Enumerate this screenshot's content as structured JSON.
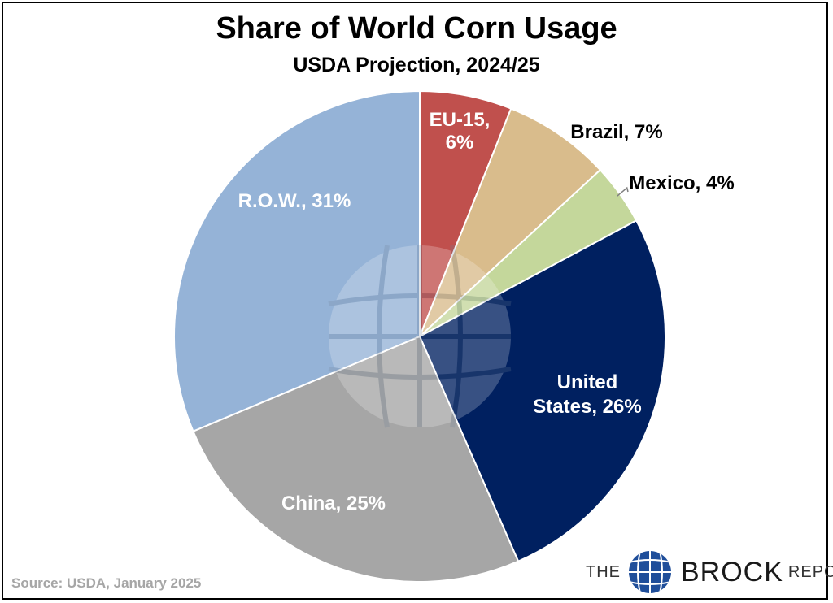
{
  "chart_data": {
    "type": "pie",
    "title": "Share of World Corn Usage",
    "subtitle": "USDA Projection, 2024/25",
    "slices": [
      {
        "label": "EU-15,",
        "label2": "6%",
        "value": 6,
        "color": "#c0504d",
        "text_color": "#ffffff",
        "placement": "inside"
      },
      {
        "label": "Brazil, 7%",
        "label2": "",
        "value": 7,
        "color": "#d9bc8c",
        "text_color": "#000000",
        "placement": "outside"
      },
      {
        "label": "Mexico, 4%",
        "label2": "",
        "value": 4,
        "color": "#c4d79b",
        "text_color": "#000000",
        "placement": "outside"
      },
      {
        "label": "United",
        "label2": "States, 26%",
        "value": 26,
        "color": "#002060",
        "text_color": "#ffffff",
        "placement": "inside"
      },
      {
        "label": "China, 25%",
        "label2": "",
        "value": 25,
        "color": "#a6a6a6",
        "text_color": "#ffffff",
        "placement": "inside"
      },
      {
        "label": "R.O.W., 31%",
        "label2": "",
        "value": 31,
        "color": "#95b3d7",
        "text_color": "#ffffff",
        "placement": "inside"
      }
    ],
    "start_angle": "12 o'clock",
    "direction": "clockwise",
    "legend": "none"
  },
  "footer": {
    "source": "Source: USDA, January 2025"
  },
  "brand": {
    "the": "THE",
    "brock": "BROCK",
    "report": "REPORT",
    "globe_color": "#1f4e9a"
  }
}
